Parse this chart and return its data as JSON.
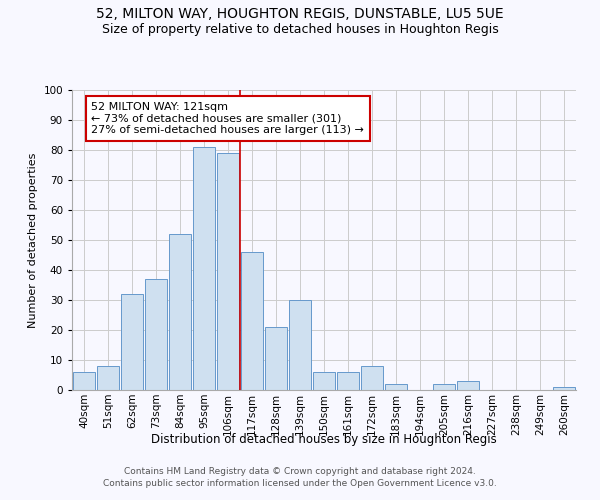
{
  "title1": "52, MILTON WAY, HOUGHTON REGIS, DUNSTABLE, LU5 5UE",
  "title2": "Size of property relative to detached houses in Houghton Regis",
  "xlabel": "Distribution of detached houses by size in Houghton Regis",
  "ylabel": "Number of detached properties",
  "categories": [
    "40sqm",
    "51sqm",
    "62sqm",
    "73sqm",
    "84sqm",
    "95sqm",
    "106sqm",
    "117sqm",
    "128sqm",
    "139sqm",
    "150sqm",
    "161sqm",
    "172sqm",
    "183sqm",
    "194sqm",
    "205sqm",
    "216sqm",
    "227sqm",
    "238sqm",
    "249sqm",
    "260sqm"
  ],
  "values": [
    6,
    8,
    32,
    37,
    52,
    81,
    79,
    46,
    21,
    30,
    6,
    6,
    8,
    2,
    0,
    2,
    3,
    0,
    0,
    0,
    1
  ],
  "bar_color": "#cfe0f0",
  "bar_edge_color": "#6699cc",
  "vline_x": 6.5,
  "annotation_line1": "52 MILTON WAY: 121sqm",
  "annotation_line2": "← 73% of detached houses are smaller (301)",
  "annotation_line3": "27% of semi-detached houses are larger (113) →",
  "annotation_box_color": "#ffffff",
  "annotation_box_edge_color": "#cc0000",
  "ylim": [
    0,
    100
  ],
  "yticks": [
    0,
    10,
    20,
    30,
    40,
    50,
    60,
    70,
    80,
    90,
    100
  ],
  "grid_color": "#cccccc",
  "background_color": "#f8f8ff",
  "footnote1": "Contains HM Land Registry data © Crown copyright and database right 2024.",
  "footnote2": "Contains public sector information licensed under the Open Government Licence v3.0.",
  "title1_fontsize": 10,
  "title2_fontsize": 9,
  "xlabel_fontsize": 8.5,
  "ylabel_fontsize": 8,
  "tick_fontsize": 7.5,
  "annot_fontsize": 8,
  "footnote_fontsize": 6.5
}
